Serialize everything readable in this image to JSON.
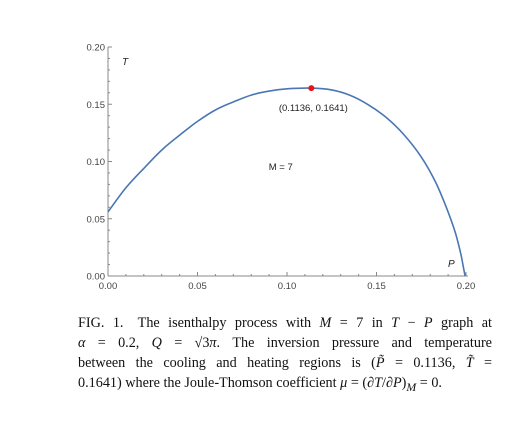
{
  "chart_data": {
    "type": "line",
    "xlabel": "P",
    "ylabel": "T",
    "xlim": [
      0,
      0.2
    ],
    "ylim": [
      0,
      0.2
    ],
    "x_ticks": [
      "0.00",
      "0.05",
      "0.10",
      "0.15",
      "0.20"
    ],
    "y_ticks": [
      "0.00",
      "0.05",
      "0.10",
      "0.15",
      "0.20"
    ],
    "series": [
      {
        "color": "#4a76b3",
        "points": [
          [
            0.0,
            0.056
          ],
          [
            0.01,
            0.077
          ],
          [
            0.02,
            0.094
          ],
          [
            0.03,
            0.11
          ],
          [
            0.04,
            0.123
          ],
          [
            0.05,
            0.135
          ],
          [
            0.06,
            0.145
          ],
          [
            0.07,
            0.152
          ],
          [
            0.08,
            0.158
          ],
          [
            0.09,
            0.1615
          ],
          [
            0.1,
            0.1635
          ],
          [
            0.1136,
            0.1641
          ],
          [
            0.125,
            0.1625
          ],
          [
            0.135,
            0.158
          ],
          [
            0.145,
            0.15
          ],
          [
            0.155,
            0.139
          ],
          [
            0.165,
            0.124
          ],
          [
            0.175,
            0.104
          ],
          [
            0.183,
            0.082
          ],
          [
            0.189,
            0.06
          ],
          [
            0.194,
            0.038
          ],
          [
            0.197,
            0.02
          ],
          [
            0.1985,
            0.008
          ],
          [
            0.1995,
            0.0
          ]
        ]
      }
    ],
    "marker": {
      "x": 0.1136,
      "y": 0.1641,
      "color": "#e8141c",
      "label": "(0.1136, 0.1641)"
    },
    "annotation": {
      "text": "M = 7",
      "x": 0.0965,
      "y": 0.0925
    }
  },
  "caption": {
    "label": "FIG. 1.",
    "lines": [
      [
        "The isenthalpy process with ",
        "M",
        " = 7 in ",
        "T",
        " − ",
        "P",
        " graph at"
      ],
      [
        "α",
        " = 0.2, ",
        "Q",
        " = √3",
        "π",
        ". The inversion pressure and temperature"
      ],
      [
        "between the cooling and heating regions is (",
        "P̃",
        " = 0.1136, ",
        "T̃",
        " ="
      ],
      [
        "0.1641) where the Joule-Thomson coefficient ",
        "μ",
        " = (∂",
        "T",
        "/∂",
        "P",
        ")",
        "M",
        " = 0."
      ]
    ]
  }
}
